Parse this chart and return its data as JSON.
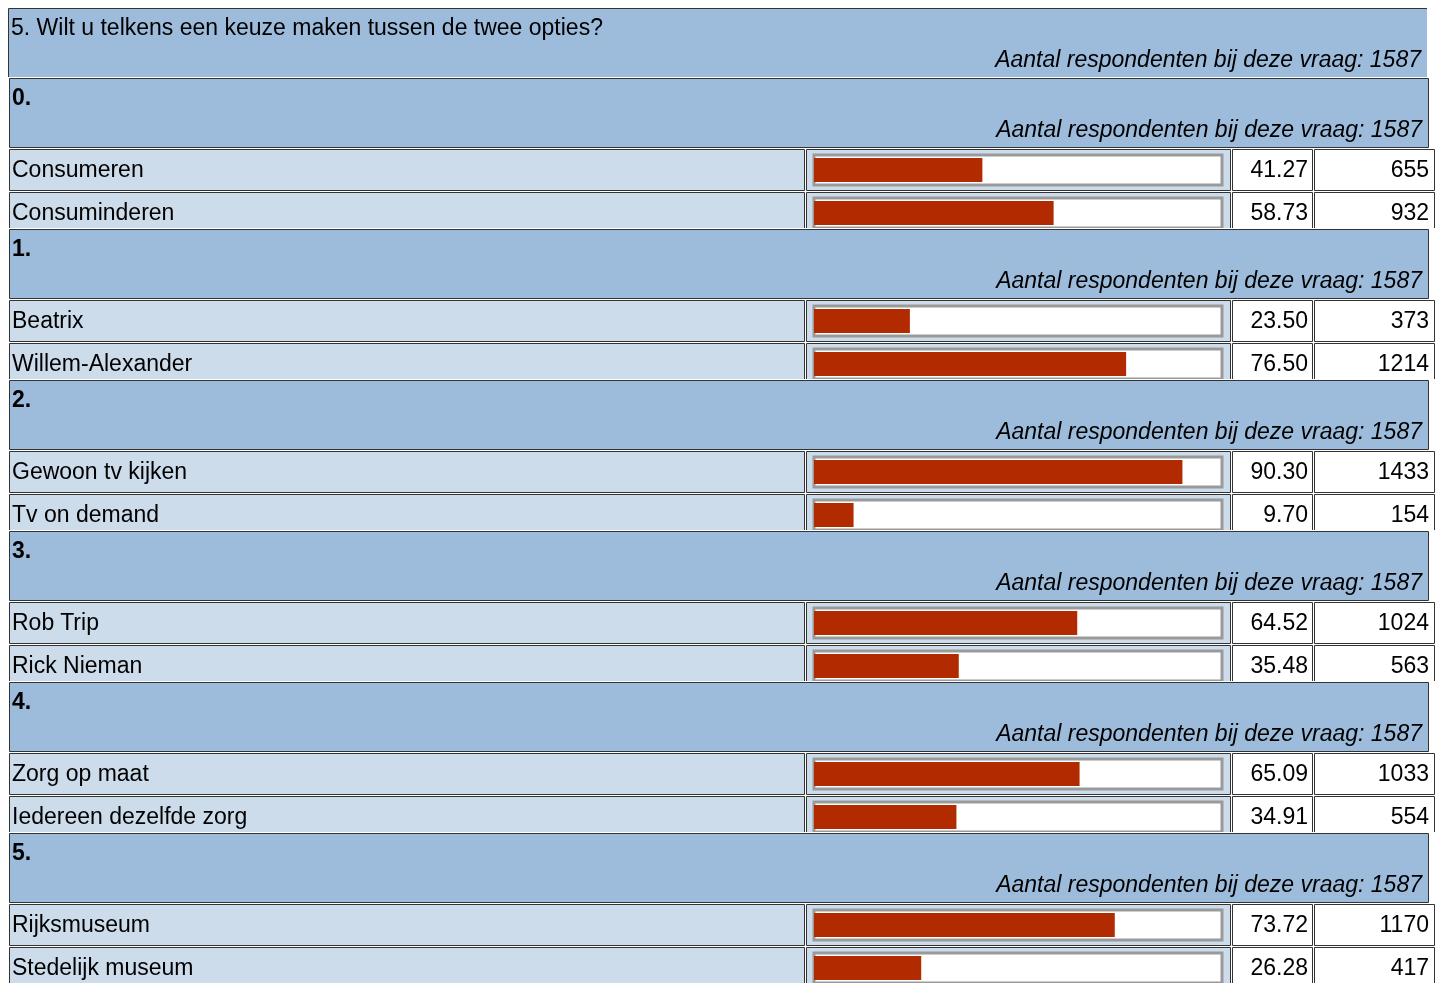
{
  "chart_data": [
    {
      "type": "other",
      "title": "5. Wilt u telkens een keuze maken tussen de twee opties?",
      "subtitle": "Aantal respondenten bij deze vraag: 1587"
    },
    {
      "type": "bar",
      "orientation": "horizontal",
      "title": "0.",
      "subtitle": "Aantal respondenten bij deze vraag: 1587",
      "categories": [
        "Consumeren",
        "Consuminderen"
      ],
      "values": [
        41.27,
        58.73
      ],
      "value_labels": [
        "41.27",
        "58.73"
      ],
      "color": "#b22a00",
      "xlim": [
        0,
        100
      ],
      "tick_labels": "y",
      "annotations": [
        "655",
        "932"
      ]
    },
    {
      "type": "bar",
      "orientation": "horizontal",
      "title": "1.",
      "subtitle": "Aantal respondenten bij deze vraag: 1587",
      "categories": [
        "Beatrix",
        "Willem-Alexander"
      ],
      "values": [
        23.5,
        76.5
      ],
      "value_labels": [
        "23.50",
        "76.50"
      ],
      "color": "#b22a00",
      "xlim": [
        0,
        100
      ],
      "tick_labels": "y",
      "annotations": [
        "373",
        "1214"
      ]
    },
    {
      "type": "bar",
      "orientation": "horizontal",
      "title": "2.",
      "subtitle": "Aantal respondenten bij deze vraag: 1587",
      "categories": [
        "Gewoon tv kijken",
        "Tv on demand"
      ],
      "values": [
        90.3,
        9.7
      ],
      "value_labels": [
        "90.30",
        "9.70"
      ],
      "color": "#b22a00",
      "xlim": [
        0,
        100
      ],
      "tick_labels": "y",
      "annotations": [
        "1433",
        "154"
      ]
    },
    {
      "type": "bar",
      "orientation": "horizontal",
      "title": "3.",
      "subtitle": "Aantal respondenten bij deze vraag: 1587",
      "categories": [
        "Rob Trip",
        "Rick Nieman"
      ],
      "values": [
        64.52,
        35.48
      ],
      "value_labels": [
        "64.52",
        "35.48"
      ],
      "color": "#b22a00",
      "xlim": [
        0,
        100
      ],
      "tick_labels": "y",
      "annotations": [
        "1024",
        "563"
      ]
    },
    {
      "type": "bar",
      "orientation": "horizontal",
      "title": "4.",
      "subtitle": "Aantal respondenten bij deze vraag: 1587",
      "categories": [
        "Zorg op maat",
        "Iedereen dezelfde zorg"
      ],
      "values": [
        65.09,
        34.91
      ],
      "value_labels": [
        "65.09",
        "34.91"
      ],
      "color": "#b22a00",
      "xlim": [
        0,
        100
      ],
      "tick_labels": "y",
      "annotations": [
        "1033",
        "554"
      ]
    },
    {
      "type": "bar",
      "orientation": "horizontal",
      "title": "5.",
      "subtitle": "Aantal respondenten bij deze vraag: 1587",
      "categories": [
        "Rijksmuseum",
        "Stedelijk museum"
      ],
      "values": [
        73.72,
        26.28
      ],
      "value_labels": [
        "73.72",
        "26.28"
      ],
      "color": "#b22a00",
      "xlim": [
        0,
        100
      ],
      "tick_labels": "y",
      "annotations": [
        "1170",
        "417"
      ]
    }
  ]
}
